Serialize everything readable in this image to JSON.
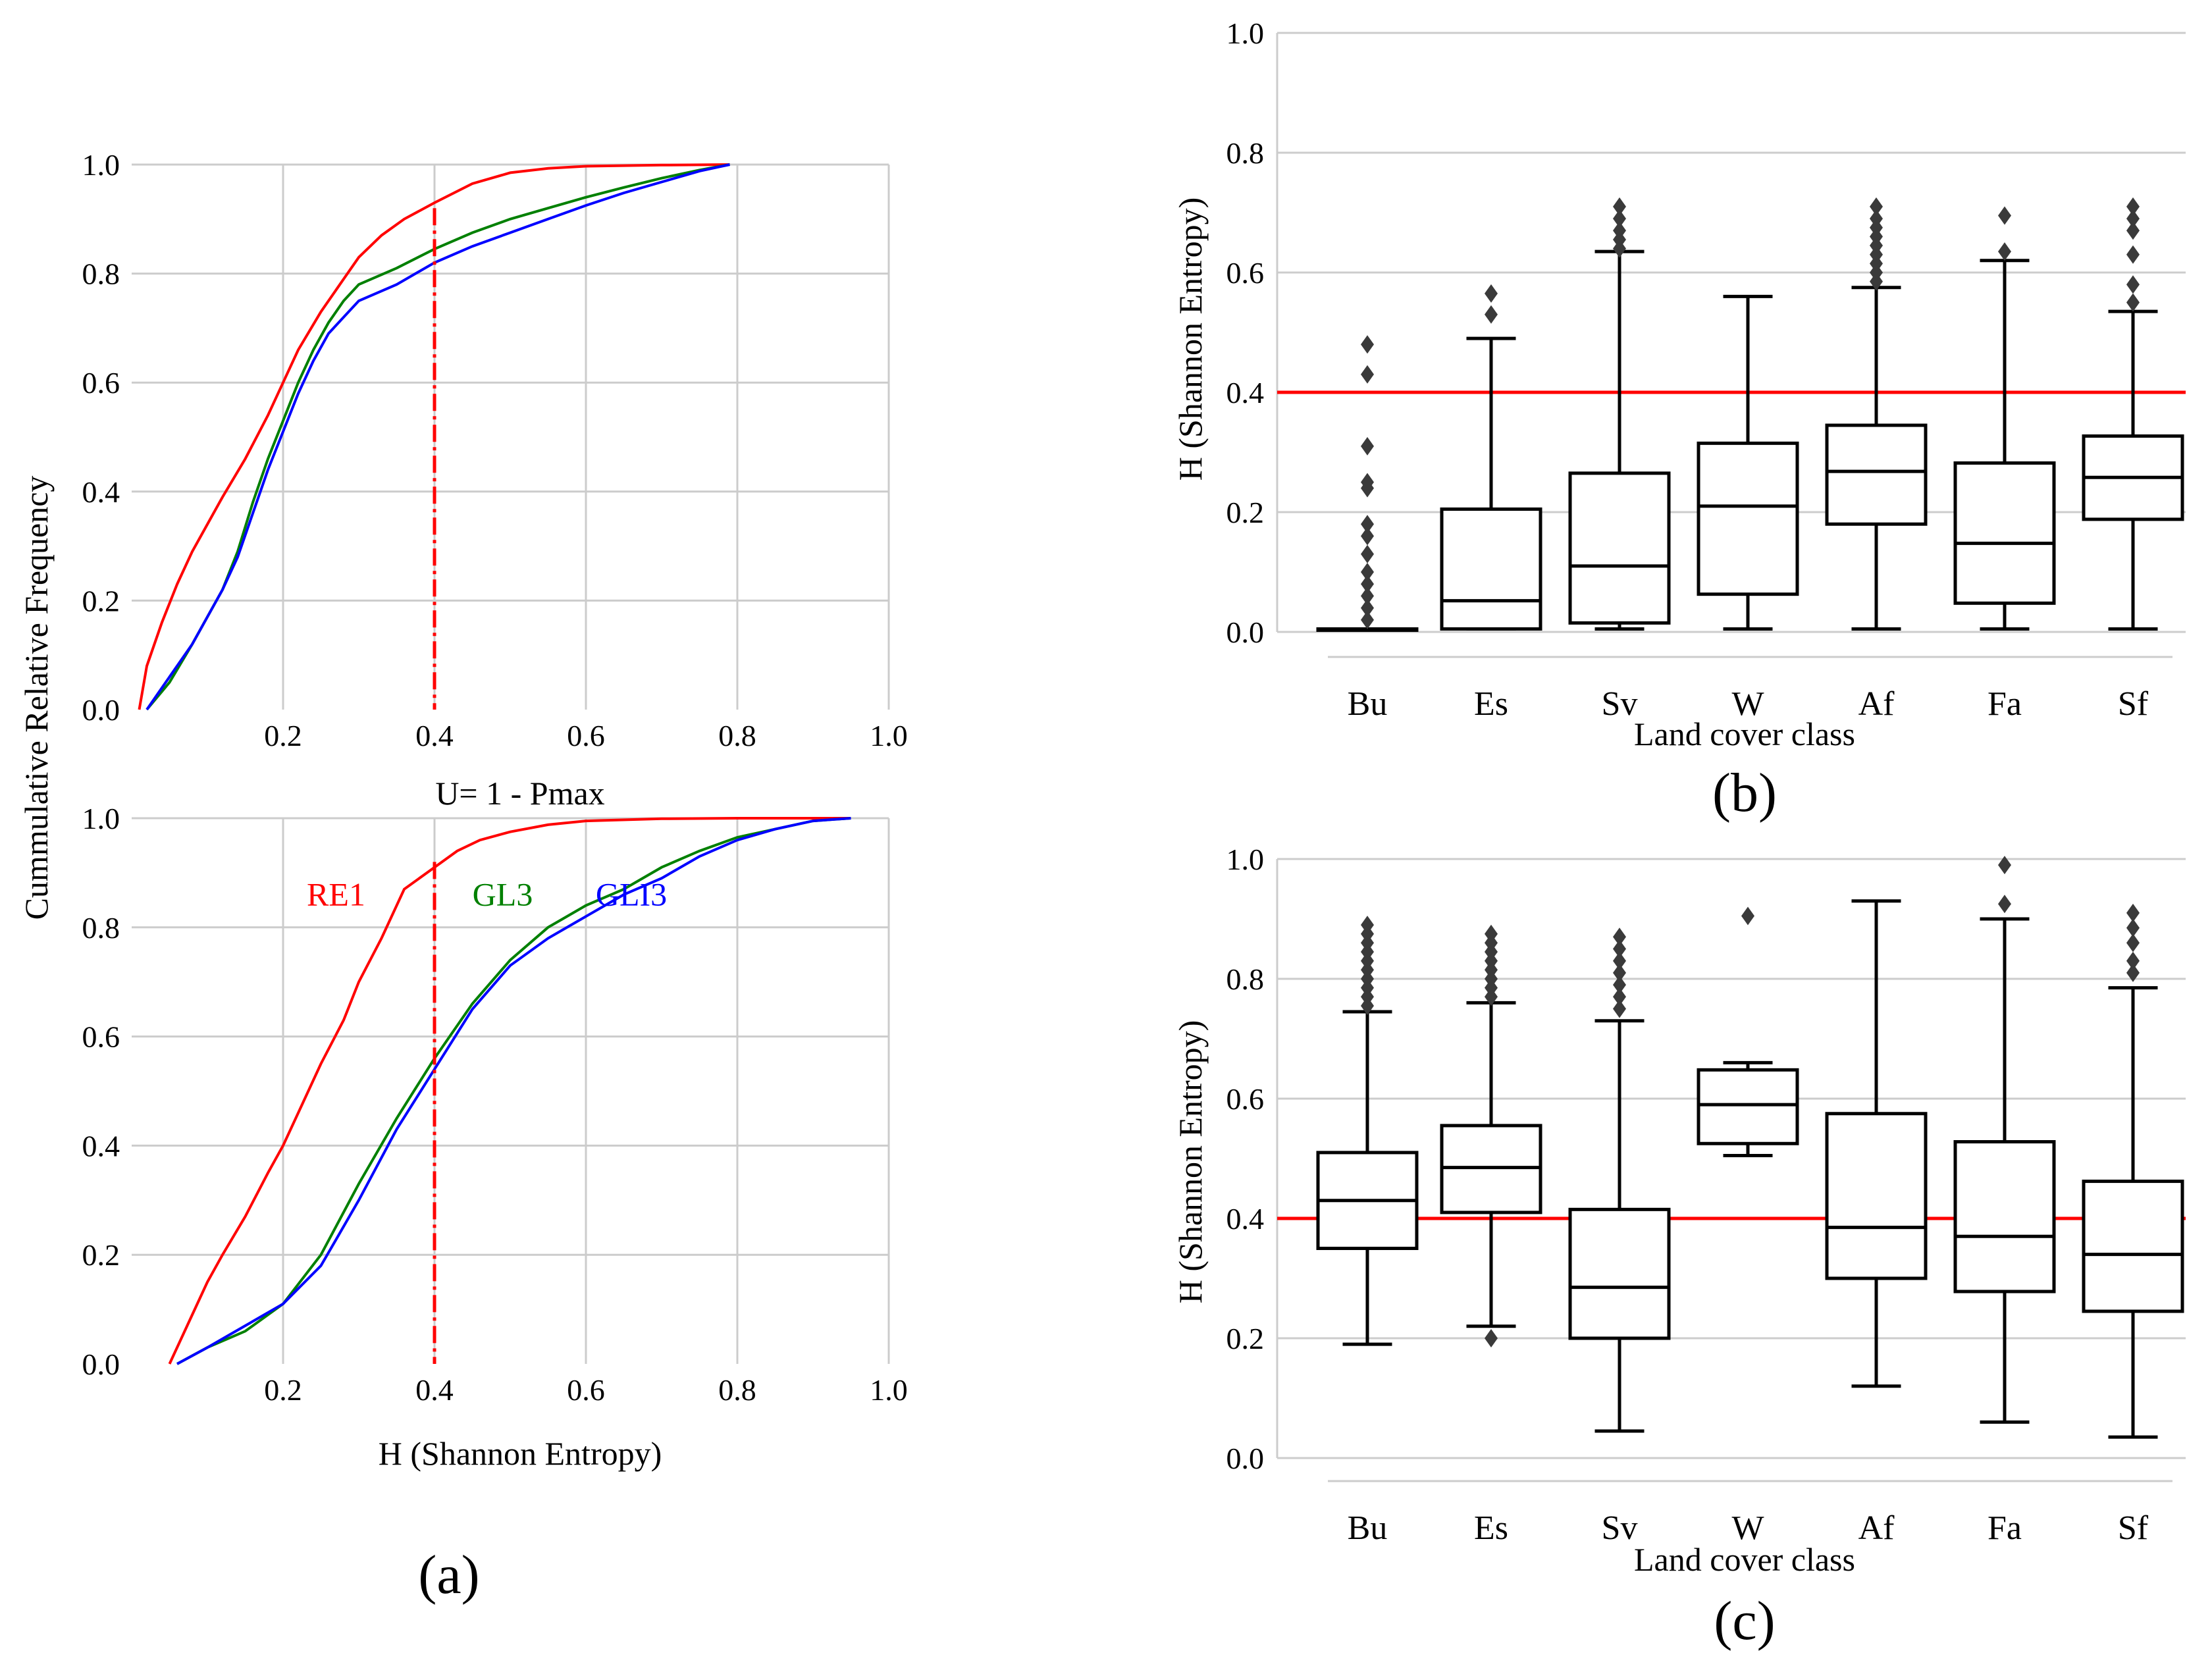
{
  "panels": {
    "a": "(a)",
    "b": "(b)",
    "c": "(c)"
  },
  "colors": {
    "re1": "#ff0000",
    "gl3": "#008000",
    "gli3": "#0000ff",
    "threshold": "#ff0000",
    "box": "#000000",
    "grid": "#cccccc"
  },
  "chart_data": [
    {
      "id": "a-top",
      "type": "line",
      "title": "",
      "xlabel": "U= 1 - Pmax",
      "ylabel": "Cummulative Relative Frequency",
      "xlim": [
        0.0,
        1.0
      ],
      "ylim": [
        0.0,
        1.0
      ],
      "xticks": [
        "0.2",
        "0.4",
        "0.6",
        "0.8",
        "1.0"
      ],
      "yticks": [
        "0.0",
        "0.2",
        "0.4",
        "0.6",
        "0.8",
        "1.0"
      ],
      "threshold_x": 0.4,
      "series": [
        {
          "name": "RE1",
          "color": "#ff0000",
          "x": [
            0.01,
            0.02,
            0.04,
            0.06,
            0.08,
            0.1,
            0.12,
            0.15,
            0.18,
            0.2,
            0.22,
            0.25,
            0.28,
            0.3,
            0.33,
            0.36,
            0.4,
            0.45,
            0.5,
            0.55,
            0.6,
            0.7,
            0.79
          ],
          "y": [
            0.0,
            0.08,
            0.16,
            0.23,
            0.29,
            0.34,
            0.39,
            0.46,
            0.54,
            0.6,
            0.66,
            0.73,
            0.79,
            0.83,
            0.87,
            0.9,
            0.93,
            0.965,
            0.985,
            0.993,
            0.997,
            0.999,
            1.0
          ]
        },
        {
          "name": "GL3",
          "color": "#008000",
          "x": [
            0.02,
            0.05,
            0.08,
            0.1,
            0.12,
            0.14,
            0.16,
            0.18,
            0.2,
            0.22,
            0.24,
            0.26,
            0.28,
            0.3,
            0.35,
            0.4,
            0.45,
            0.5,
            0.55,
            0.6,
            0.65,
            0.7,
            0.75,
            0.79
          ],
          "y": [
            0.0,
            0.05,
            0.12,
            0.17,
            0.22,
            0.29,
            0.38,
            0.46,
            0.53,
            0.6,
            0.66,
            0.71,
            0.75,
            0.78,
            0.81,
            0.845,
            0.875,
            0.9,
            0.92,
            0.94,
            0.958,
            0.975,
            0.99,
            1.0
          ]
        },
        {
          "name": "GLI3",
          "color": "#0000ff",
          "x": [
            0.02,
            0.05,
            0.08,
            0.1,
            0.12,
            0.14,
            0.16,
            0.18,
            0.2,
            0.22,
            0.24,
            0.26,
            0.28,
            0.3,
            0.35,
            0.4,
            0.45,
            0.5,
            0.55,
            0.6,
            0.65,
            0.7,
            0.75,
            0.79
          ],
          "y": [
            0.0,
            0.06,
            0.12,
            0.17,
            0.22,
            0.28,
            0.36,
            0.44,
            0.51,
            0.58,
            0.64,
            0.69,
            0.72,
            0.75,
            0.78,
            0.82,
            0.85,
            0.875,
            0.9,
            0.925,
            0.948,
            0.968,
            0.988,
            1.0
          ]
        }
      ]
    },
    {
      "id": "a-bottom",
      "type": "line",
      "title": "",
      "xlabel": "H (Shannon Entropy)",
      "ylabel": "Cummulative Relative Frequency",
      "xlim": [
        0.0,
        1.0
      ],
      "ylim": [
        0.0,
        1.0
      ],
      "xticks": [
        "0.2",
        "0.4",
        "0.6",
        "0.8",
        "1.0"
      ],
      "yticks": [
        "0.0",
        "0.2",
        "0.4",
        "0.6",
        "0.8",
        "1.0"
      ],
      "threshold_x": 0.4,
      "annotations": [
        {
          "text": "RE1",
          "x": 0.27,
          "y": 0.84,
          "color": "#ff0000"
        },
        {
          "text": "GL3",
          "x": 0.49,
          "y": 0.84,
          "color": "#008000"
        },
        {
          "text": "GLI3",
          "x": 0.66,
          "y": 0.84,
          "color": "#0000ff"
        }
      ],
      "series": [
        {
          "name": "RE1",
          "color": "#ff0000",
          "x": [
            0.05,
            0.08,
            0.1,
            0.12,
            0.15,
            0.18,
            0.2,
            0.22,
            0.25,
            0.28,
            0.3,
            0.33,
            0.36,
            0.4,
            0.43,
            0.46,
            0.5,
            0.55,
            0.6,
            0.7,
            0.8,
            0.95
          ],
          "y": [
            0.0,
            0.09,
            0.15,
            0.2,
            0.27,
            0.35,
            0.4,
            0.46,
            0.55,
            0.63,
            0.7,
            0.78,
            0.87,
            0.91,
            0.94,
            0.96,
            0.975,
            0.988,
            0.995,
            0.999,
            1.0,
            1.0
          ]
        },
        {
          "name": "GL3",
          "color": "#008000",
          "x": [
            0.06,
            0.1,
            0.15,
            0.2,
            0.25,
            0.3,
            0.35,
            0.4,
            0.45,
            0.5,
            0.55,
            0.6,
            0.65,
            0.7,
            0.75,
            0.8,
            0.85,
            0.9,
            0.95
          ],
          "y": [
            0.0,
            0.03,
            0.06,
            0.11,
            0.2,
            0.33,
            0.45,
            0.56,
            0.66,
            0.74,
            0.8,
            0.84,
            0.87,
            0.91,
            0.94,
            0.965,
            0.98,
            0.995,
            1.0
          ]
        },
        {
          "name": "GLI3",
          "color": "#0000ff",
          "x": [
            0.06,
            0.1,
            0.15,
            0.2,
            0.25,
            0.3,
            0.35,
            0.4,
            0.45,
            0.5,
            0.55,
            0.6,
            0.65,
            0.7,
            0.75,
            0.8,
            0.85,
            0.9,
            0.95
          ],
          "y": [
            0.0,
            0.03,
            0.07,
            0.11,
            0.18,
            0.3,
            0.43,
            0.54,
            0.65,
            0.73,
            0.78,
            0.82,
            0.86,
            0.89,
            0.93,
            0.96,
            0.98,
            0.995,
            1.0
          ]
        }
      ]
    },
    {
      "id": "b",
      "type": "box",
      "title": "",
      "xlabel": "Land cover class",
      "ylabel": "H (Shannon Entropy)",
      "ylim": [
        0.0,
        1.0
      ],
      "yticks": [
        "0.0",
        "0.2",
        "0.4",
        "0.6",
        "0.8",
        "1.0"
      ],
      "categories": [
        "Bu",
        "Es",
        "Sv",
        "W",
        "Af",
        "Fa",
        "Sf"
      ],
      "threshold_y": 0.4,
      "boxes": [
        {
          "min": 0.005,
          "q1": 0.005,
          "median": 0.005,
          "q3": 0.005,
          "max": 0.005,
          "outliers": [
            0.02,
            0.04,
            0.06,
            0.08,
            0.1,
            0.13,
            0.16,
            0.18,
            0.24,
            0.25,
            0.31,
            0.43,
            0.48
          ]
        },
        {
          "min": 0.005,
          "q1": 0.005,
          "median": 0.052,
          "q3": 0.205,
          "max": 0.49,
          "outliers": [
            0.53,
            0.565
          ]
        },
        {
          "min": 0.005,
          "q1": 0.015,
          "median": 0.11,
          "q3": 0.265,
          "max": 0.635,
          "outliers": [
            0.64,
            0.655,
            0.67,
            0.69,
            0.71
          ]
        },
        {
          "min": 0.005,
          "q1": 0.063,
          "median": 0.21,
          "q3": 0.315,
          "max": 0.56,
          "outliers": []
        },
        {
          "min": 0.005,
          "q1": 0.18,
          "median": 0.268,
          "q3": 0.345,
          "max": 0.575,
          "outliers": [
            0.585,
            0.6,
            0.615,
            0.63,
            0.645,
            0.66,
            0.675,
            0.69,
            0.71
          ]
        },
        {
          "min": 0.005,
          "q1": 0.048,
          "median": 0.148,
          "q3": 0.282,
          "max": 0.62,
          "outliers": [
            0.635,
            0.695
          ]
        },
        {
          "min": 0.005,
          "q1": 0.188,
          "median": 0.258,
          "q3": 0.327,
          "max": 0.535,
          "outliers": [
            0.55,
            0.58,
            0.63,
            0.67,
            0.69,
            0.71
          ]
        }
      ]
    },
    {
      "id": "c",
      "type": "box",
      "title": "",
      "xlabel": "Land cover class",
      "ylabel": "H (Shannon Entropy)",
      "ylim": [
        0.0,
        1.0
      ],
      "yticks": [
        "0.0",
        "0.2",
        "0.4",
        "0.6",
        "0.8",
        "1.0"
      ],
      "categories": [
        "Bu",
        "Es",
        "Sv",
        "W",
        "Af",
        "Fa",
        "Sf"
      ],
      "threshold_y": 0.4,
      "boxes": [
        {
          "min": 0.19,
          "q1": 0.35,
          "median": 0.43,
          "q3": 0.51,
          "max": 0.745,
          "outliers": [
            0.755,
            0.77,
            0.785,
            0.8,
            0.815,
            0.83,
            0.845,
            0.86,
            0.875,
            0.89
          ]
        },
        {
          "min": 0.22,
          "q1": 0.41,
          "median": 0.485,
          "q3": 0.555,
          "max": 0.76,
          "outliers": [
            0.2,
            0.77,
            0.785,
            0.8,
            0.815,
            0.83,
            0.845,
            0.86,
            0.875
          ]
        },
        {
          "min": 0.045,
          "q1": 0.2,
          "median": 0.285,
          "q3": 0.415,
          "max": 0.73,
          "outliers": [
            0.75,
            0.77,
            0.79,
            0.81,
            0.83,
            0.85,
            0.87
          ]
        },
        {
          "min": 0.505,
          "q1": 0.525,
          "median": 0.59,
          "q3": 0.648,
          "max": 0.66,
          "outliers": [
            0.905
          ]
        },
        {
          "min": 0.12,
          "q1": 0.3,
          "median": 0.385,
          "q3": 0.575,
          "max": 0.93,
          "outliers": []
        },
        {
          "min": 0.06,
          "q1": 0.278,
          "median": 0.37,
          "q3": 0.528,
          "max": 0.9,
          "outliers": [
            0.925,
            0.99
          ]
        },
        {
          "min": 0.035,
          "q1": 0.245,
          "median": 0.34,
          "q3": 0.462,
          "max": 0.785,
          "outliers": [
            0.81,
            0.83,
            0.86,
            0.885,
            0.91
          ]
        }
      ]
    }
  ]
}
